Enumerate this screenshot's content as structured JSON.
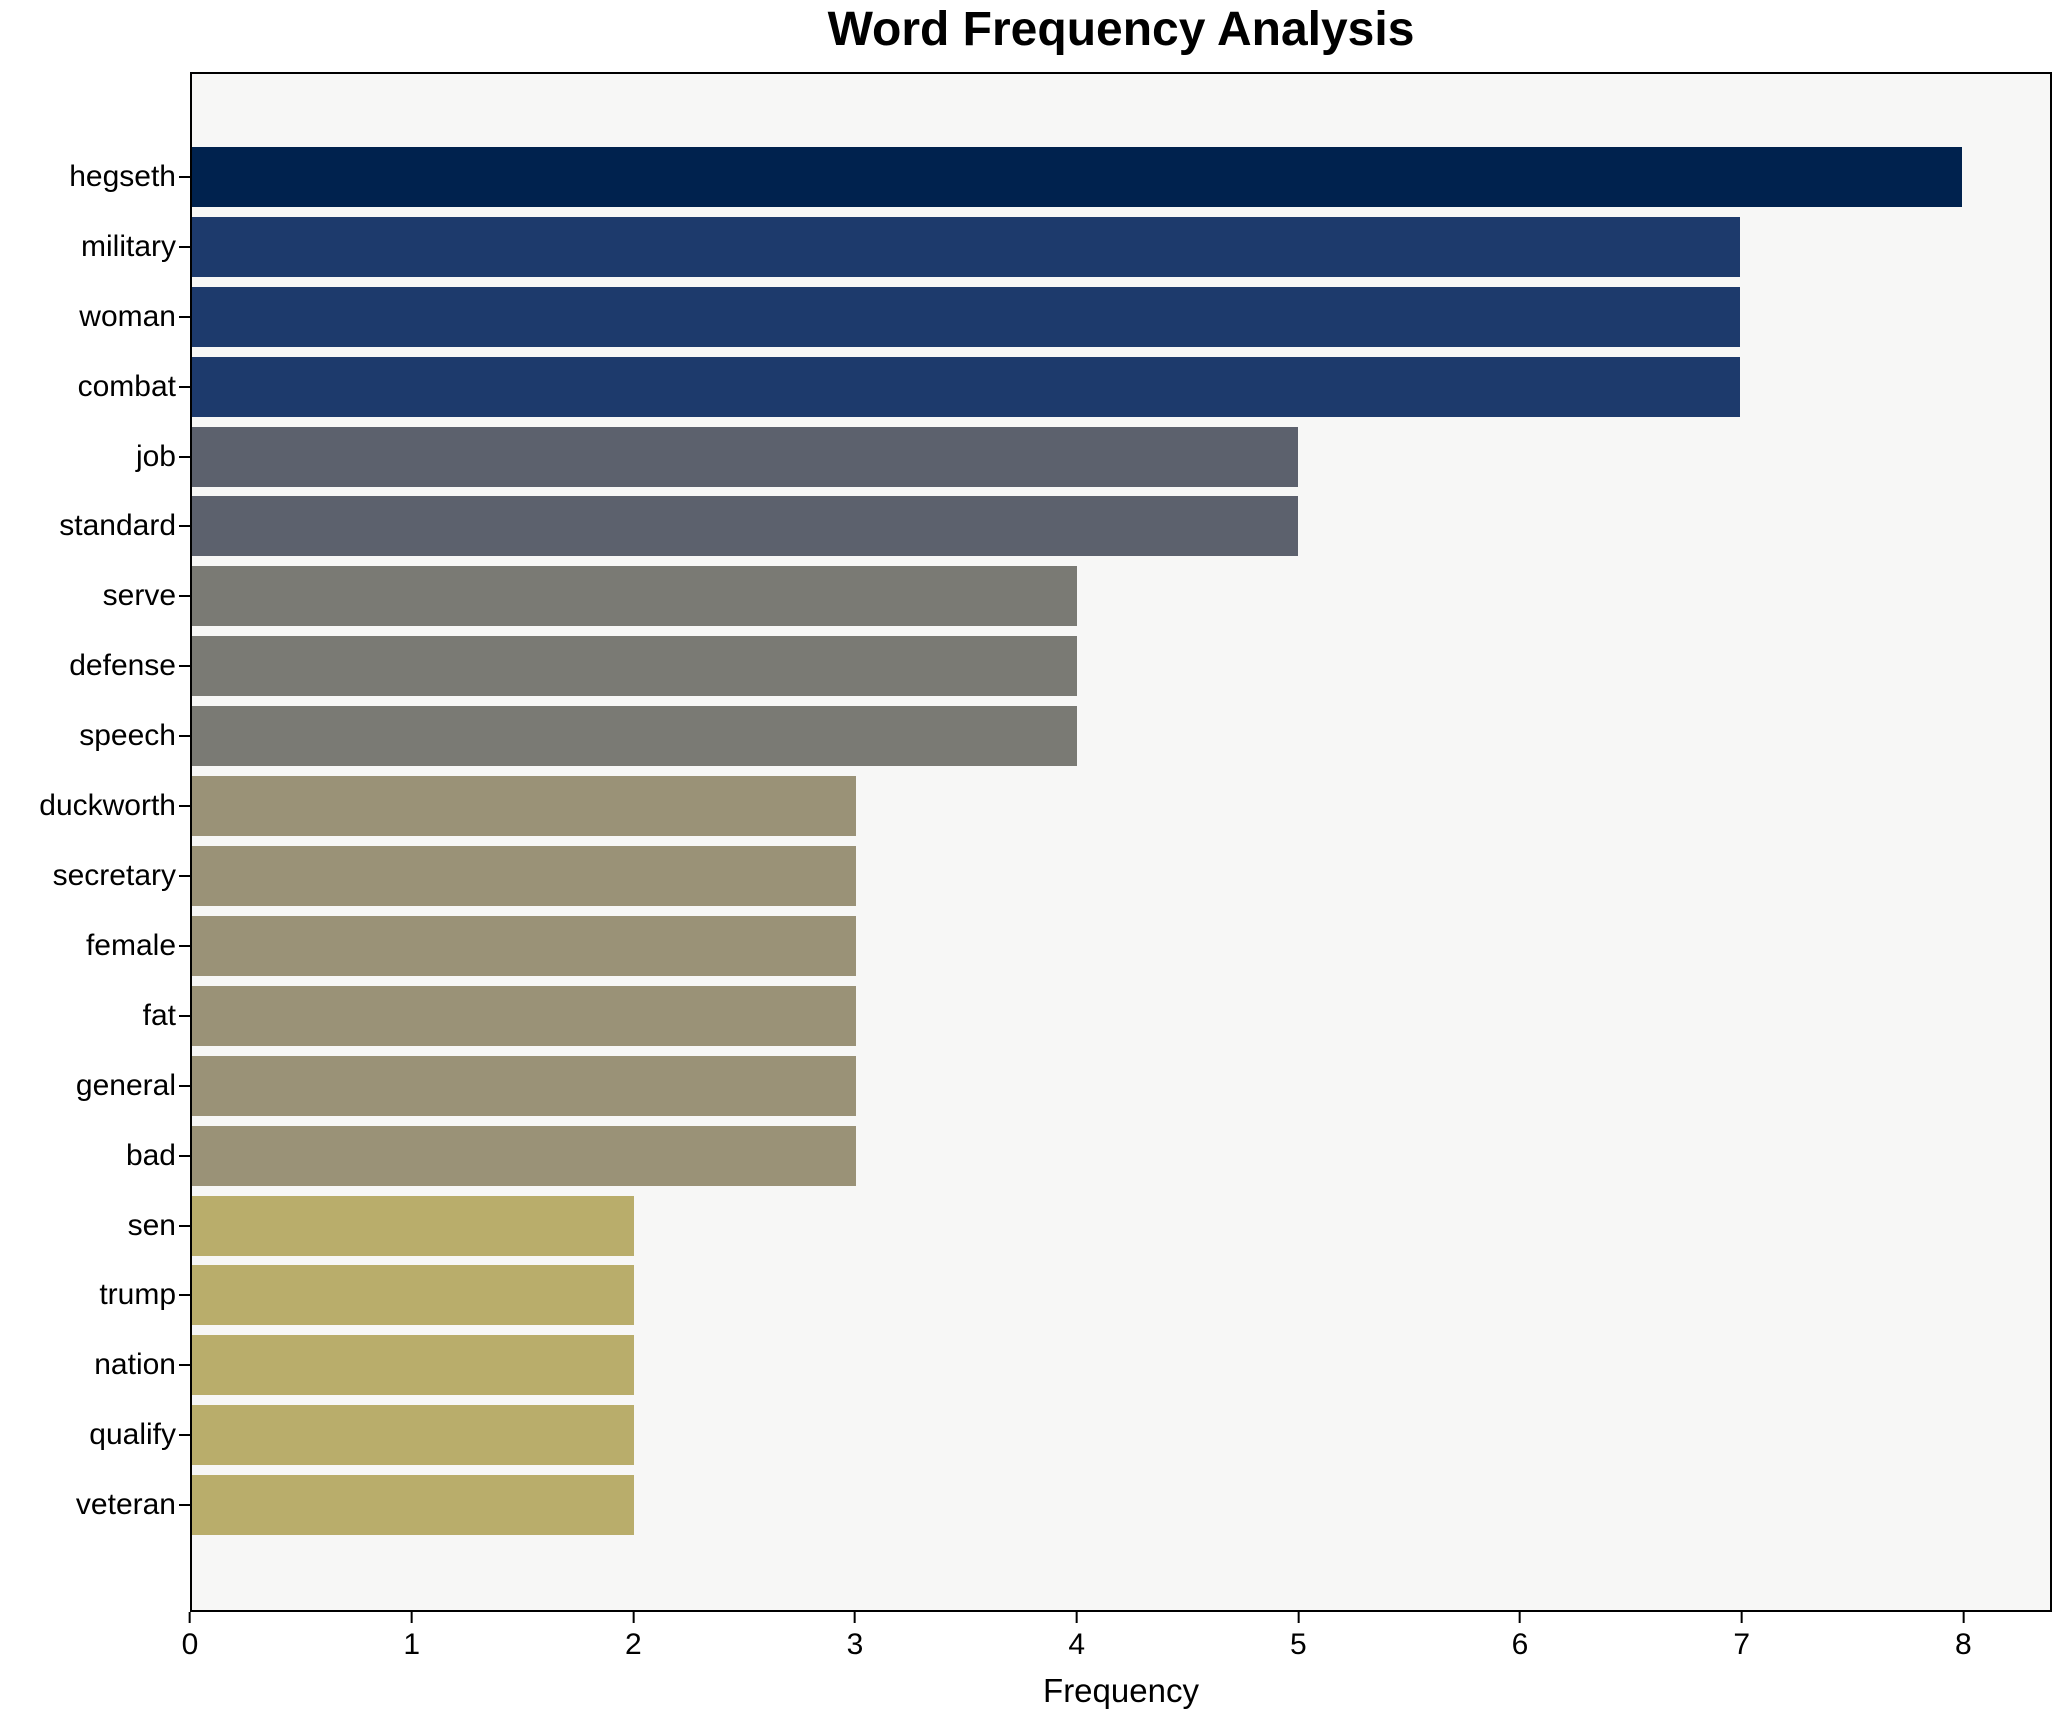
{
  "chart_data": {
    "type": "bar",
    "orientation": "horizontal",
    "title": "Word Frequency Analysis",
    "xlabel": "Frequency",
    "ylabel": "",
    "categories": [
      "hegseth",
      "military",
      "woman",
      "combat",
      "job",
      "standard",
      "serve",
      "defense",
      "speech",
      "duckworth",
      "secretary",
      "female",
      "fat",
      "general",
      "bad",
      "sen",
      "trump",
      "nation",
      "qualify",
      "veteran"
    ],
    "values": [
      8,
      7,
      7,
      7,
      5,
      5,
      4,
      4,
      4,
      3,
      3,
      3,
      3,
      3,
      3,
      2,
      2,
      2,
      2,
      2
    ],
    "colors": [
      "#00224e",
      "#1d3a6c",
      "#1d3a6c",
      "#1d3a6c",
      "#5c616d",
      "#5c616d",
      "#7a7a74",
      "#7a7a74",
      "#7a7a74",
      "#9a9277",
      "#9a9277",
      "#9a9277",
      "#9a9277",
      "#9a9277",
      "#9a9277",
      "#b9ad6b",
      "#b9ad6b",
      "#b9ad6b",
      "#b9ad6b",
      "#b9ad6b"
    ],
    "xticks": [
      0,
      1,
      2,
      3,
      4,
      5,
      6,
      7,
      8
    ],
    "xlim": [
      0,
      8.4
    ],
    "grid": false,
    "legend": "none",
    "plot_background": "#f7f7f6",
    "frame_color": "#000000"
  }
}
